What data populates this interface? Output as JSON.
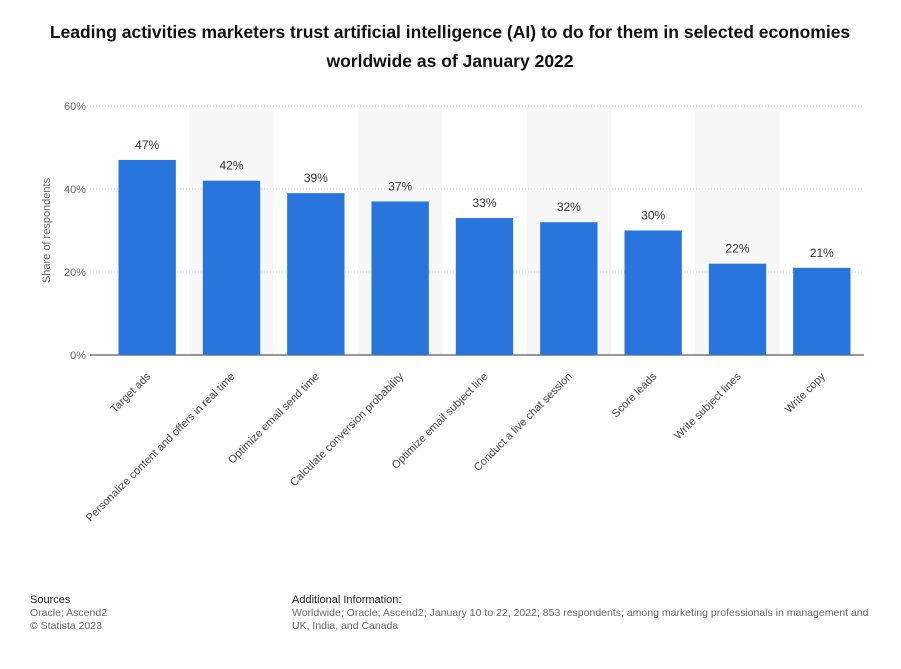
{
  "chart_data": {
    "type": "bar",
    "title": "Leading activities marketers trust artificial intelligence (AI) to do for them in selected economies worldwide as of January 2022",
    "y_label": "Share of respondents",
    "categories": [
      "Target ads",
      "Personalize content and offers in real time",
      "Optimize email send time",
      "Calculate conversion probability",
      "Optimize email subject line",
      "Conduct a live chat session",
      "Score leads",
      "Write subject lines",
      "Write copy"
    ],
    "values": [
      47,
      42,
      39,
      37,
      33,
      32,
      30,
      22,
      21
    ],
    "value_labels": [
      "47%",
      "42%",
      "39%",
      "37%",
      "33%",
      "32%",
      "30%",
      "22%",
      "21%"
    ],
    "color": "#2876dd",
    "ylim": [
      0,
      60
    ],
    "yticks": [
      {
        "value": 0,
        "label": "0%"
      },
      {
        "value": 20,
        "label": "20%"
      },
      {
        "value": 40,
        "label": "40%"
      },
      {
        "value": 60,
        "label": "60%"
      }
    ],
    "grid": true
  },
  "footer": {
    "sources_title": "Sources",
    "sources": [
      "Oracle; Ascend2",
      "© Statista 2023"
    ],
    "info_title": "Additional Information:",
    "info": [
      "Worldwide; Oracle; Ascend2; January 10 to 22, 2022; 853 respondents; among marketing professionals in management and",
      "UK, India, and Canada"
    ]
  }
}
